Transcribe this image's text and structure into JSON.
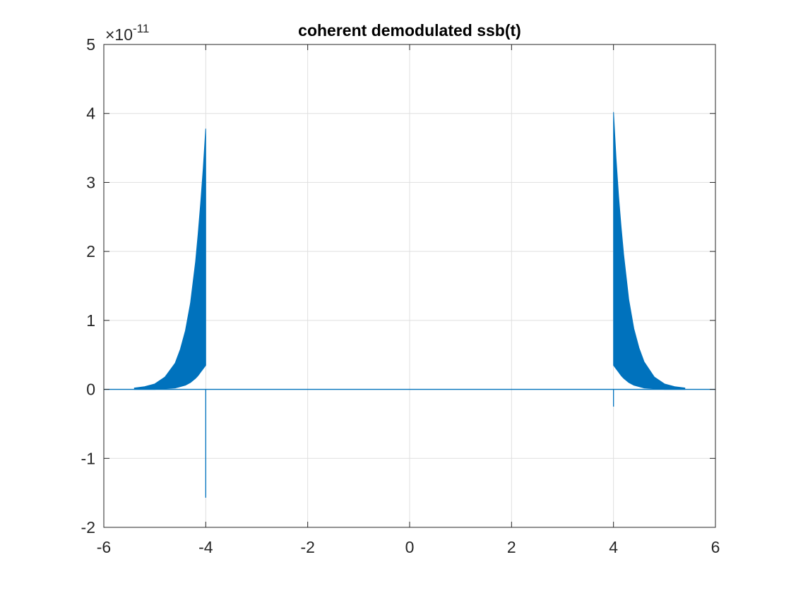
{
  "chart_data": {
    "type": "area",
    "title": "coherent demodulated ssb(t)",
    "xlabel": "",
    "ylabel": "",
    "xlim": [
      -6,
      6
    ],
    "ylim": [
      -2,
      5
    ],
    "y_multiplier": {
      "base": "10",
      "exponent": "-11",
      "prefix": "×"
    },
    "x_ticks": [
      -6,
      -4,
      -2,
      0,
      2,
      4,
      6
    ],
    "x_tick_labels": [
      "-6",
      "-4",
      "-2",
      "0",
      "2",
      "4",
      "6"
    ],
    "y_ticks": [
      -2,
      -1,
      0,
      1,
      2,
      3,
      4,
      5
    ],
    "y_tick_labels": [
      "-2",
      "-1",
      "0",
      "1",
      "2",
      "3",
      "4",
      "5"
    ],
    "grid": true,
    "series_color": "#0072BD",
    "series": [
      {
        "kind": "envelope-left",
        "description_of_shape": "oscillation band filling between lower and upper envelopes, rising toward t = -4",
        "x": [
          -5.4,
          -5.2,
          -5.0,
          -4.8,
          -4.6,
          -4.5,
          -4.4,
          -4.3,
          -4.2,
          -4.15,
          -4.1,
          -4.05,
          -4.0
        ],
        "upper": [
          0.02,
          0.04,
          0.08,
          0.18,
          0.38,
          0.58,
          0.85,
          1.25,
          1.85,
          2.25,
          2.7,
          3.2,
          3.78
        ],
        "lower": [
          0.0,
          0.0,
          0.0,
          0.01,
          0.02,
          0.04,
          0.06,
          0.1,
          0.16,
          0.2,
          0.25,
          0.3,
          0.35
        ]
      },
      {
        "kind": "envelope-right",
        "x": [
          4.0,
          4.05,
          4.1,
          4.15,
          4.2,
          4.3,
          4.4,
          4.5,
          4.6,
          4.8,
          5.0,
          5.2,
          5.4
        ],
        "upper": [
          4.02,
          3.35,
          2.8,
          2.35,
          1.95,
          1.3,
          0.88,
          0.6,
          0.4,
          0.18,
          0.08,
          0.04,
          0.02
        ],
        "lower": [
          0.35,
          0.3,
          0.25,
          0.2,
          0.16,
          0.1,
          0.06,
          0.04,
          0.02,
          0.01,
          0.0,
          0.0,
          0.0
        ]
      },
      {
        "kind": "spike",
        "x": -4.0,
        "min": -1.57,
        "max": 0.0
      },
      {
        "kind": "spike",
        "x": 4.0,
        "min": -0.25,
        "max": 0.0
      },
      {
        "kind": "baseline",
        "x": [
          -6,
          6
        ],
        "y": [
          0,
          0
        ]
      }
    ]
  }
}
